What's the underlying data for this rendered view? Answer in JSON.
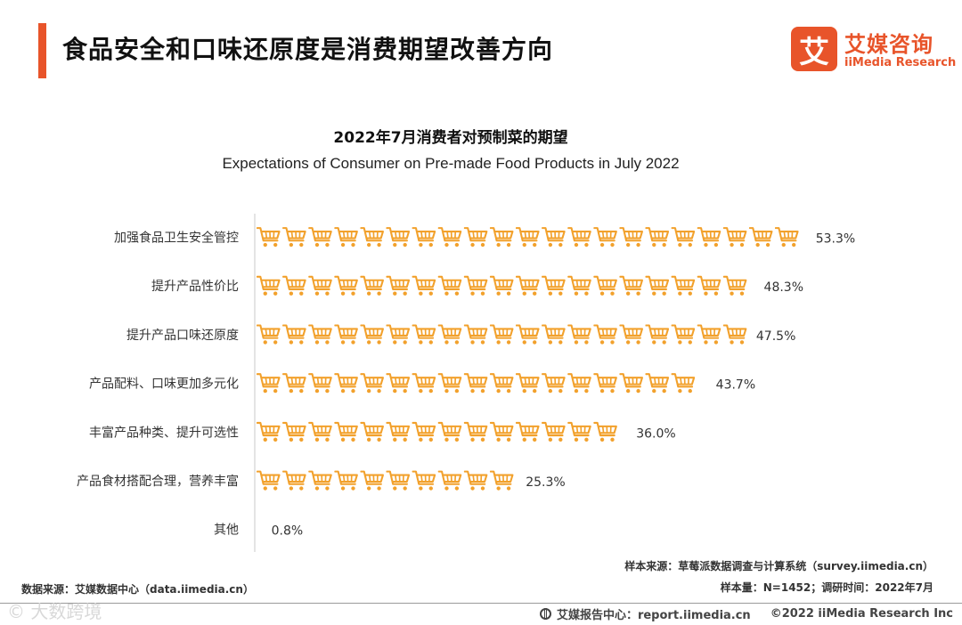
{
  "header": {
    "title": "食品安全和口味还原度是消费期望改善方向",
    "accent_color": "#e8542a"
  },
  "logo": {
    "mark": "艾",
    "name_cn": "艾媒咨询",
    "name_en": "iiMedia Research",
    "color": "#e8542a"
  },
  "chart_data": {
    "type": "bar",
    "orientation": "horizontal",
    "glyph": "shopping-cart-icon",
    "unit_value": 2.5,
    "bar_color": "#f2a12c",
    "title": "2022年7月消费者对预制菜的期望",
    "subtitle": "Expectations of Consumer on Pre-made Food Products in July 2022",
    "categories": [
      "加强食品卫生安全管控",
      "提升产品性价比",
      "提升产品口味还原度",
      "产品配料、口味更加多元化",
      "丰富产品种类、提升可选性",
      "产品食材搭配合理，营养丰富",
      "其他"
    ],
    "values": [
      53.3,
      48.3,
      47.5,
      43.7,
      36.0,
      25.3,
      0.8
    ],
    "value_labels": [
      "53.3%",
      "48.3%",
      "47.5%",
      "43.7%",
      "36.0%",
      "25.3%",
      "0.8%"
    ],
    "grid": false,
    "legend": false
  },
  "source": {
    "sample_source": "样本来源：草莓派数据调查与计算系统（survey.iimedia.cn）",
    "sample_info": "样本量：N=1452；调研时间：2022年7月",
    "data_source": "数据来源：艾媒数据中心（data.iimedia.cn）"
  },
  "footer": {
    "watermark": "©  大数跨境",
    "report_center": "艾媒报告中心：report.iimedia.cn",
    "copyright": "©2022  iiMedia Research  Inc"
  }
}
